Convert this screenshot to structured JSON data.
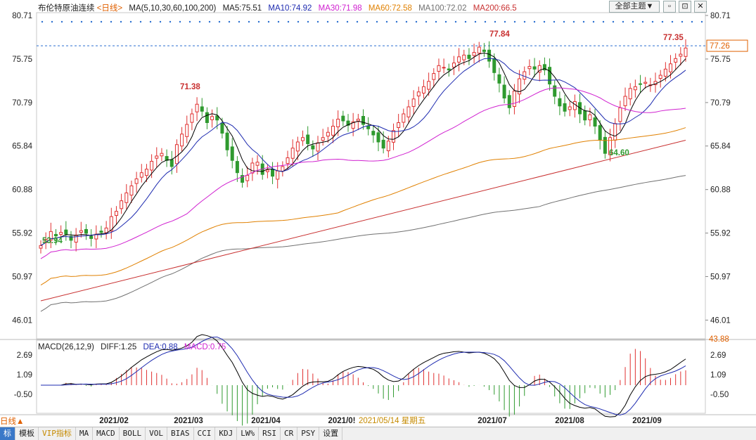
{
  "header": {
    "title": "布伦特原油连续",
    "period": "<日线>",
    "ma_params": "MA(5,10,30,60,100,200)",
    "ma5": "MA5:75.51",
    "ma10": "MA10:74.92",
    "ma30": "MA30:71.98",
    "ma60": "MA60:72.58",
    "ma100": "MA100:72.02",
    "ma200": "MA200:66.5",
    "theme_button": "全部主题▼",
    "colors": {
      "ma5": "#000000",
      "ma10": "#1e2bb0",
      "ma30": "#d020d0",
      "ma60": "#e08000",
      "ma100": "#707070",
      "ma200": "#c83030"
    }
  },
  "y_axis": {
    "left": [
      "80.71",
      "75.75",
      "70.79",
      "65.84",
      "60.88",
      "55.92",
      "50.97",
      "46.01"
    ],
    "right": [
      "80.71",
      "75.75",
      "70.79",
      "65.84",
      "60.88",
      "55.92",
      "50.97",
      "46.01"
    ],
    "right_bottom": "43.88",
    "current_price": "77.26"
  },
  "annotations": {
    "high1": "71.38",
    "high2": "77.84",
    "high3": "77.35",
    "low1": "53.94",
    "low2": "64.60"
  },
  "macd": {
    "params": "MACD(26,12,9)",
    "diff": "DIFF:1.25",
    "dea": "DEA:0.88",
    "macd": "MACD:0.75",
    "y_labels": [
      "2.69",
      "1.09",
      "-0.50"
    ]
  },
  "x_axis": {
    "labels": [
      "2021/02",
      "2021/03",
      "2021/04",
      "2021/0!",
      "2021/05/14 星期五",
      "2021/07",
      "2021/08",
      "2021/09"
    ]
  },
  "toolbar": {
    "items": [
      "标",
      "模板",
      "VIP指标",
      "MA",
      "MACD",
      "BOLL",
      "VOL",
      "BIAS",
      "CCI",
      "KDJ",
      "LW%",
      "RSI",
      "CR",
      "PSY",
      "设置"
    ],
    "left_label": "日线▲"
  },
  "chart_data": {
    "type": "candlestick",
    "ylim": [
      43.88,
      80.71
    ],
    "close_series": [
      54.5,
      55.2,
      56.1,
      55.6,
      56.0,
      55.8,
      55.1,
      55.7,
      56.2,
      55.9,
      55.3,
      55.8,
      56.0,
      56.5,
      57.8,
      58.4,
      59.6,
      60.5,
      61.3,
      62.1,
      62.8,
      63.2,
      64.1,
      64.7,
      65.0,
      64.2,
      63.5,
      66.0,
      67.2,
      68.3,
      69.5,
      70.6,
      69.8,
      68.5,
      69.2,
      68.8,
      67.3,
      65.4,
      64.2,
      62.8,
      61.7,
      62.5,
      63.9,
      64.0,
      62.6,
      63.1,
      62.4,
      63.0,
      63.5,
      64.5,
      65.6,
      66.3,
      66.8,
      66.1,
      65.5,
      66.2,
      66.8,
      67.4,
      68.1,
      68.9,
      68.7,
      68.2,
      68.6,
      68.9,
      68.3,
      67.8,
      67.1,
      66.3,
      65.6,
      66.4,
      67.6,
      68.5,
      69.5,
      70.3,
      71.2,
      72.0,
      72.6,
      73.2,
      74.1,
      75.0,
      74.8,
      74.5,
      75.3,
      76.0,
      76.2,
      75.8,
      76.5,
      77.1,
      76.6,
      75.5,
      74.2,
      73.0,
      71.3,
      70.2,
      72.1,
      73.5,
      74.3,
      74.9,
      74.6,
      75.0,
      74.5,
      72.9,
      71.5,
      70.4,
      69.8,
      70.3,
      70.9,
      69.5,
      68.8,
      69.4,
      68.1,
      66.5,
      65.0,
      66.8,
      68.4,
      70.2,
      71.5,
      72.4,
      72.6,
      72.9,
      73.1,
      72.8,
      73.2,
      73.9,
      74.6,
      75.2,
      75.8,
      76.3,
      77.0
    ],
    "ma200": [
      48.2,
      66.5
    ]
  }
}
